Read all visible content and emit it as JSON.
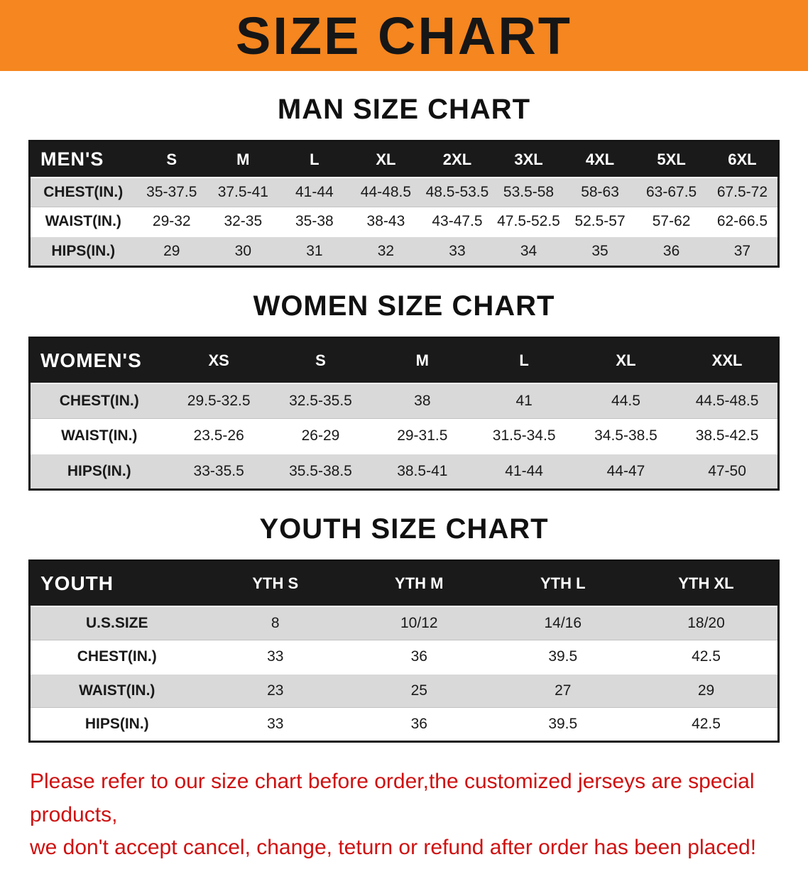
{
  "banner": {
    "title": "SIZE CHART",
    "bg_color": "#f6861f"
  },
  "sections": [
    {
      "id": "men",
      "heading": "MAN SIZE CHART",
      "table": {
        "header": [
          "MEN'S",
          "S",
          "M",
          "L",
          "XL",
          "2XL",
          "3XL",
          "4XL",
          "5XL",
          "6XL"
        ],
        "rows": [
          [
            "CHEST(IN.)",
            "35-37.5",
            "37.5-41",
            "41-44",
            "44-48.5",
            "48.5-53.5",
            "53.5-58",
            "58-63",
            "63-67.5",
            "67.5-72"
          ],
          [
            "WAIST(IN.)",
            "29-32",
            "32-35",
            "35-38",
            "38-43",
            "43-47.5",
            "47.5-52.5",
            "52.5-57",
            "57-62",
            "62-66.5"
          ],
          [
            "HIPS(IN.)",
            "29",
            "30",
            "31",
            "32",
            "33",
            "34",
            "35",
            "36",
            "37"
          ]
        ]
      }
    },
    {
      "id": "women",
      "heading": "WOMEN SIZE CHART",
      "table": {
        "header": [
          "WOMEN'S",
          "XS",
          "S",
          "M",
          "L",
          "XL",
          "XXL"
        ],
        "rows": [
          [
            "CHEST(IN.)",
            "29.5-32.5",
            "32.5-35.5",
            "38",
            "41",
            "44.5",
            "44.5-48.5"
          ],
          [
            "WAIST(IN.)",
            "23.5-26",
            "26-29",
            "29-31.5",
            "31.5-34.5",
            "34.5-38.5",
            "38.5-42.5"
          ],
          [
            "HIPS(IN.)",
            "33-35.5",
            "35.5-38.5",
            "38.5-41",
            "41-44",
            "44-47",
            "47-50"
          ]
        ]
      }
    },
    {
      "id": "youth",
      "heading": "YOUTH SIZE CHART",
      "table": {
        "header": [
          "YOUTH",
          "YTH S",
          "YTH M",
          "YTH L",
          "YTH XL"
        ],
        "rows": [
          [
            "U.S.SIZE",
            "8",
            "10/12",
            "14/16",
            "18/20"
          ],
          [
            "CHEST(IN.)",
            "33",
            "36",
            "39.5",
            "42.5"
          ],
          [
            "WAIST(IN.)",
            "23",
            "25",
            "27",
            "29"
          ],
          [
            "HIPS(IN.)",
            "33",
            "36",
            "39.5",
            "42.5"
          ]
        ]
      }
    }
  ],
  "footer": {
    "text_color": "#cf1010",
    "lines": [
      "Please refer to our size chart before order,the customized jerseys are special products,",
      "we don't accept cancel, change, teturn or refund after order has been placed!"
    ]
  }
}
